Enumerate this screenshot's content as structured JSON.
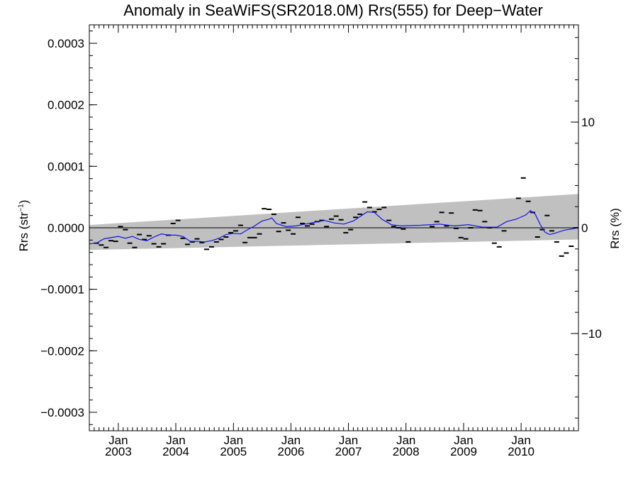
{
  "chart_data": {
    "type": "line",
    "title": "Anomaly in SeaWiFS(SR2018.0M) Rrs(555) for Deep−Water",
    "ylabel": {
      "main": "Rrs (str",
      "sup": "−1",
      "close": ")"
    },
    "ylabel_right": "Rrs (%)",
    "ylim": [
      -0.00033,
      0.00033
    ],
    "y_ticks": [
      {
        "value": 0.0003,
        "label": "0.0003"
      },
      {
        "value": 0.0002,
        "label": "0.0002"
      },
      {
        "value": 0.0001,
        "label": "0.0001"
      },
      {
        "value": 0.0,
        "label": "0.0000"
      },
      {
        "value": -0.0001,
        "label": "−0.0001"
      },
      {
        "value": -0.0002,
        "label": "−0.0002"
      },
      {
        "value": -0.0003,
        "label": "−0.0003"
      }
    ],
    "y2lim": [
      -19.2,
      19.2
    ],
    "y2_ticks": [
      {
        "value": 10,
        "label": "10"
      },
      {
        "value": 0,
        "label": "0"
      },
      {
        "value": -10,
        "label": "−10"
      }
    ],
    "xlim": [
      "2002-07-01",
      "2010-12-31"
    ],
    "x_ticks": [
      {
        "date": "2003-01-01",
        "month": "Jan",
        "year": "2003"
      },
      {
        "date": "2004-01-01",
        "month": "Jan",
        "year": "2004"
      },
      {
        "date": "2005-01-01",
        "month": "Jan",
        "year": "2005"
      },
      {
        "date": "2006-01-01",
        "month": "Jan",
        "year": "2006"
      },
      {
        "date": "2007-01-01",
        "month": "Jan",
        "year": "2007"
      },
      {
        "date": "2008-01-01",
        "month": "Jan",
        "year": "2008"
      },
      {
        "date": "2009-01-01",
        "month": "Jan",
        "year": "2009"
      },
      {
        "date": "2010-01-01",
        "month": "Jan",
        "year": "2010"
      }
    ],
    "zero_line": 0,
    "uncertainty_band": {
      "upper": [
        [
          "2002-07-01",
          4.5e-06
        ],
        [
          "2010-12-31",
          5.5e-05
        ]
      ],
      "lower": [
        [
          "2002-07-01",
          -3.6e-05
        ],
        [
          "2010-12-31",
          -1.9e-05
        ]
      ]
    },
    "series": [
      {
        "kind": "monthly",
        "color": "#000000",
        "points": [
          [
            "2002-08",
            -2.5e-05
          ],
          [
            "2002-09",
            -2.8e-05
          ],
          [
            "2002-10",
            -3.2e-05
          ],
          [
            "2002-11",
            -2.1e-05
          ],
          [
            "2002-12",
            -2.2e-05
          ],
          [
            "2003-01",
            2e-06
          ],
          [
            "2003-02",
            -3e-06
          ],
          [
            "2003-03",
            -2.5e-05
          ],
          [
            "2003-04",
            -3.2e-05
          ],
          [
            "2003-05",
            -1.1e-05
          ],
          [
            "2003-06",
            -1.9e-05
          ],
          [
            "2003-07",
            -1.3e-05
          ],
          [
            "2003-08",
            -2.6e-05
          ],
          [
            "2003-09",
            -3.1e-05
          ],
          [
            "2003-10",
            -2.6e-05
          ],
          [
            "2003-11",
            -1.2e-05
          ],
          [
            "2003-12",
            7e-06
          ],
          [
            "2004-01",
            1.2e-05
          ],
          [
            "2004-02",
            -1.7e-05
          ],
          [
            "2004-03",
            -2.7e-05
          ],
          [
            "2004-04",
            -2.3e-05
          ],
          [
            "2004-05",
            -1.8e-05
          ],
          [
            "2004-06",
            -2.4e-05
          ],
          [
            "2004-07",
            -3.5e-05
          ],
          [
            "2004-08",
            -3.1e-05
          ],
          [
            "2004-09",
            -2.3e-05
          ],
          [
            "2004-10",
            -1.9e-05
          ],
          [
            "2004-11",
            -1.5e-05
          ],
          [
            "2004-12",
            -8e-06
          ],
          [
            "2005-01",
            -5e-06
          ],
          [
            "2005-02",
            4e-06
          ],
          [
            "2005-03",
            -2.4e-05
          ],
          [
            "2005-04",
            -1.6e-05
          ],
          [
            "2005-05",
            -1.6e-05
          ],
          [
            "2005-06",
            -1e-05
          ],
          [
            "2005-07",
            3.1e-05
          ],
          [
            "2005-08",
            3e-05
          ],
          [
            "2005-09",
            2.2e-05
          ],
          [
            "2005-10",
            -6e-06
          ],
          [
            "2005-11",
            8e-06
          ],
          [
            "2005-12",
            -4e-06
          ],
          [
            "2006-01",
            -1e-05
          ],
          [
            "2006-02",
            1.7e-05
          ],
          [
            "2006-03",
            7e-06
          ],
          [
            "2006-04",
            3e-06
          ],
          [
            "2006-05",
            6e-06
          ],
          [
            "2006-06",
            1e-05
          ],
          [
            "2006-07",
            1.2e-05
          ],
          [
            "2006-08",
            2e-06
          ],
          [
            "2006-09",
            1.4e-05
          ],
          [
            "2006-10",
            1.9e-05
          ],
          [
            "2006-11",
            1.3e-05
          ],
          [
            "2006-12",
            -8e-06
          ],
          [
            "2007-01",
            -3e-06
          ],
          [
            "2007-02",
            1.7e-05
          ],
          [
            "2007-03",
            2.2e-05
          ],
          [
            "2007-04",
            4.2e-05
          ],
          [
            "2007-05",
            3.3e-05
          ],
          [
            "2007-06",
            2.6e-05
          ],
          [
            "2007-07",
            3e-05
          ],
          [
            "2007-08",
            3.3e-05
          ],
          [
            "2007-09",
            1.2e-05
          ],
          [
            "2007-10",
            2e-06
          ],
          [
            "2007-11",
            0.0
          ],
          [
            "2007-12",
            -2e-06
          ],
          [
            "2008-01",
            -2.3e-05
          ],
          [
            "2008-06",
            2e-06
          ],
          [
            "2008-07",
            1e-05
          ],
          [
            "2008-08",
            2.5e-05
          ],
          [
            "2008-09",
            3e-06
          ],
          [
            "2008-10",
            2.4e-05
          ],
          [
            "2008-11",
            -1e-06
          ],
          [
            "2008-12",
            -1.6e-05
          ],
          [
            "2009-01",
            -1.8e-05
          ],
          [
            "2009-02",
            0.0
          ],
          [
            "2009-03",
            2.9e-05
          ],
          [
            "2009-04",
            2.8e-05
          ],
          [
            "2009-05",
            1e-05
          ],
          [
            "2009-06",
            0.0
          ],
          [
            "2009-07",
            -2.5e-05
          ],
          [
            "2009-08",
            -3.1e-05
          ],
          [
            "2009-09",
            -5e-06
          ],
          [
            "2009-12",
            4.8e-05
          ],
          [
            "2010-01",
            8.1e-05
          ],
          [
            "2010-02",
            4.3e-05
          ],
          [
            "2010-03",
            2.5e-05
          ],
          [
            "2010-04",
            -1.5e-05
          ],
          [
            "2010-05",
            -3e-06
          ],
          [
            "2010-06",
            2e-05
          ],
          [
            "2010-07",
            -5e-06
          ],
          [
            "2010-08",
            -2.3e-05
          ],
          [
            "2010-09",
            -4.6e-05
          ],
          [
            "2010-10",
            -4.1e-05
          ],
          [
            "2010-11",
            -3e-05
          ],
          [
            "2010-12",
            0.0
          ]
        ]
      },
      {
        "kind": "smoothed",
        "color": "#1414e6",
        "points": [
          [
            "2002-07-01",
            -2.6e-05
          ],
          [
            "2002-08-15",
            -2.5e-05
          ],
          [
            "2002-10-01",
            -1.8e-05
          ],
          [
            "2002-11-15",
            -1.6e-05
          ],
          [
            "2003-01-01",
            -1.4e-05
          ],
          [
            "2003-02-15",
            -1.7e-05
          ],
          [
            "2003-04-01",
            -1.4e-05
          ],
          [
            "2003-05-15",
            -1.9e-05
          ],
          [
            "2003-07-01",
            -2.1e-05
          ],
          [
            "2003-08-15",
            -1.5e-05
          ],
          [
            "2003-10-01",
            -1e-05
          ],
          [
            "2003-11-15",
            -1.2e-05
          ],
          [
            "2004-01-01",
            -1.2e-05
          ],
          [
            "2004-02-15",
            -1.4e-05
          ],
          [
            "2004-04-01",
            -2.2e-05
          ],
          [
            "2004-05-15",
            -2.2e-05
          ],
          [
            "2004-07-01",
            -2.3e-05
          ],
          [
            "2004-08-15",
            -2.1e-05
          ],
          [
            "2004-10-01",
            -1.7e-05
          ],
          [
            "2004-11-15",
            -1.1e-05
          ],
          [
            "2005-01-01",
            -9e-06
          ],
          [
            "2005-02-15",
            -1e-05
          ],
          [
            "2005-04-01",
            -3e-06
          ],
          [
            "2005-05-15",
            3e-06
          ],
          [
            "2005-07-01",
            1.1e-05
          ],
          [
            "2005-08-15",
            1.4e-05
          ],
          [
            "2005-09-01",
            1.6e-05
          ],
          [
            "2005-10-01",
            7e-06
          ],
          [
            "2005-12-01",
            2e-06
          ],
          [
            "2006-02-01",
            3e-06
          ],
          [
            "2006-04-01",
            6e-06
          ],
          [
            "2006-06-01",
            9e-06
          ],
          [
            "2006-08-01",
            1.2e-05
          ],
          [
            "2006-10-01",
            8e-06
          ],
          [
            "2006-12-01",
            6e-06
          ],
          [
            "2007-02-01",
            1.1e-05
          ],
          [
            "2007-04-01",
            2.1e-05
          ],
          [
            "2007-05-01",
            2.6e-05
          ],
          [
            "2007-06-15",
            2.5e-05
          ],
          [
            "2007-08-01",
            1.4e-05
          ],
          [
            "2007-10-01",
            5e-06
          ],
          [
            "2007-12-01",
            3e-06
          ],
          [
            "2008-04-01",
            4e-06
          ],
          [
            "2008-08-01",
            6e-06
          ],
          [
            "2008-11-01",
            3e-06
          ],
          [
            "2009-02-01",
            5e-06
          ],
          [
            "2009-05-01",
            1e-06
          ],
          [
            "2009-08-01",
            1e-06
          ],
          [
            "2009-10-01",
            1e-05
          ],
          [
            "2009-12-01",
            1.4e-05
          ],
          [
            "2010-02-01",
            2.1e-05
          ],
          [
            "2010-03-01",
            2.8e-05
          ],
          [
            "2010-04-01",
            2.2e-05
          ],
          [
            "2010-05-01",
            6e-06
          ],
          [
            "2010-06-01",
            -7e-06
          ],
          [
            "2010-07-01",
            -1.1e-05
          ],
          [
            "2010-08-01",
            -9e-06
          ],
          [
            "2010-10-01",
            -4e-06
          ],
          [
            "2010-12-31",
            0.0
          ]
        ]
      }
    ],
    "colors": {
      "band": "#c0c0c0",
      "smoothed": "#1414e6",
      "monthly": "#000000",
      "axes": "#000000"
    },
    "grid": false,
    "legend": "none"
  }
}
